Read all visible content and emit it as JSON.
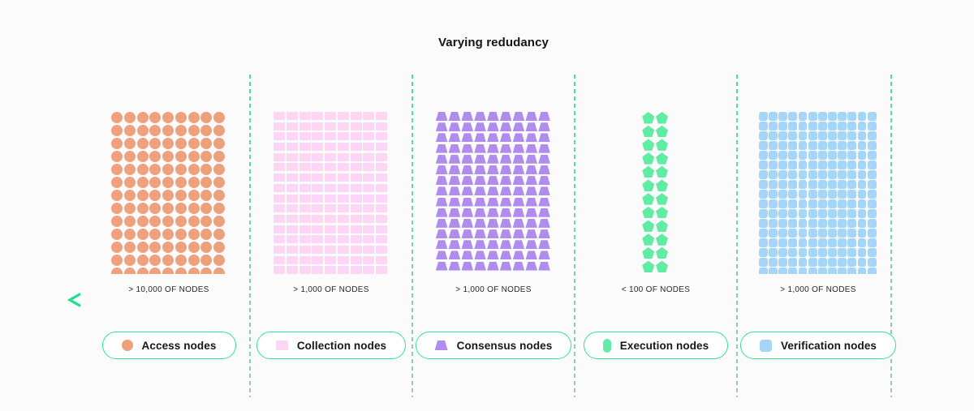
{
  "title": "Varying redudancy",
  "colors": {
    "background": "#FBFBFB",
    "accent_green": "#30E296",
    "arrow_green_light": "#22DF8C",
    "arrow_green_dark": "#0F7C55",
    "dash_green_top": "#3EE6A0",
    "dash_green_bottom": "#9FC9B2"
  },
  "arrow": {
    "direction": "left"
  },
  "columns": [
    {
      "id": "access",
      "count_label": "> 10,000 OF NODES",
      "legend_label": "Access nodes",
      "shape": "circle",
      "color": "#EEA17C",
      "grid": {
        "cols": 9,
        "rows": 13
      }
    },
    {
      "id": "collection",
      "count_label": "> 1,000 OF NODES",
      "legend_label": "Collection nodes",
      "shape": "square",
      "color": "#FBD7F5",
      "grid": {
        "cols": 9,
        "rows": 16
      }
    },
    {
      "id": "consensus",
      "count_label": "> 1,000 OF NODES",
      "legend_label": "Consensus nodes",
      "shape": "trapezoid",
      "color": "#B18CEF",
      "grid": {
        "cols": 9,
        "rows": 15
      }
    },
    {
      "id": "execution",
      "count_label": "< 100 OF NODES",
      "legend_label": "Execution nodes",
      "shape": "pentagon",
      "color": "#61ECA3",
      "grid": {
        "cols": 2,
        "rows": 12
      }
    },
    {
      "id": "verification",
      "count_label": "> 1,000 OF NODES",
      "legend_label": "Verification nodes",
      "shape": "rounded-square",
      "color": "#A6D6F7",
      "grid": {
        "cols": 12,
        "rows": 17
      }
    }
  ]
}
